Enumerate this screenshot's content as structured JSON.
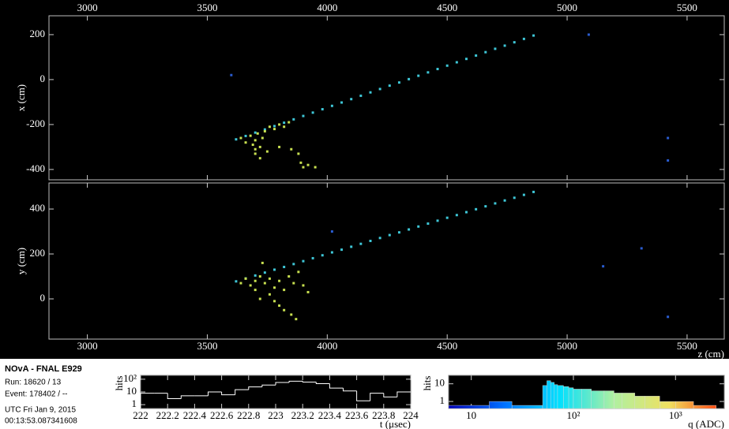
{
  "info": {
    "title": "NOvA - FNAL E929",
    "run": "Run:   18620 / 13",
    "event": "Event: 178402 / --",
    "date": "UTC Fri Jan 9, 2015",
    "time": "00:13:53.087341608"
  },
  "chart_data": [
    {
      "type": "scatter",
      "ylabel": "x (cm)",
      "xaxis": "top",
      "xlim": [
        2840,
        5655
      ],
      "ylim": [
        -446,
        284
      ],
      "xticks": [
        3000,
        3500,
        4000,
        4500,
        5000,
        5500
      ],
      "yticks": [
        -400,
        -200,
        0,
        200
      ],
      "series": [
        {
          "color": "#3ec6d6",
          "x": [
            3620,
            3660,
            3700,
            3740,
            3780,
            3820,
            3860,
            3900,
            3940,
            3980,
            4020,
            4060,
            4100,
            4140,
            4180,
            4220,
            4260,
            4300,
            4340,
            4380,
            4420,
            4460,
            4500,
            4540,
            4580,
            4620,
            4660,
            4700,
            4740,
            4780,
            4820,
            4860
          ],
          "values": [
            -266,
            -251,
            -236,
            -222,
            -207,
            -192,
            -177,
            -162,
            -147,
            -132,
            -117,
            -102,
            -87,
            -72,
            -57,
            -42,
            -27,
            -13,
            2,
            17,
            32,
            47,
            62,
            77,
            92,
            107,
            122,
            137,
            151,
            166,
            181,
            196
          ]
        },
        {
          "color": "#c8e050",
          "x": [
            3640,
            3660,
            3680,
            3690,
            3700,
            3710,
            3720,
            3730,
            3740,
            3760,
            3780,
            3800,
            3820,
            3840,
            3700,
            3750,
            3800,
            3850,
            3880,
            3890,
            3900,
            3920,
            3950,
            3700,
            3720
          ],
          "values": [
            -260,
            -280,
            -250,
            -290,
            -270,
            -240,
            -300,
            -260,
            -230,
            -210,
            -220,
            -200,
            -210,
            -190,
            -310,
            -320,
            -300,
            -310,
            -330,
            -370,
            -390,
            -380,
            -390,
            -330,
            -350
          ]
        },
        {
          "color": "#2a5cd0",
          "x": [
            3600,
            5090,
            5420,
            5420
          ],
          "values": [
            20,
            200,
            -260,
            -360
          ]
        }
      ]
    },
    {
      "type": "scatter",
      "ylabel": "y (cm)",
      "xlabel": "z (cm)",
      "xaxis": "bottom",
      "xlim": [
        2840,
        5655
      ],
      "ylim": [
        -179,
        516
      ],
      "xticks": [
        3000,
        3500,
        4000,
        4500,
        5000,
        5500
      ],
      "yticks": [
        0,
        200,
        400
      ],
      "series": [
        {
          "color": "#3ec6d6",
          "x": [
            3620,
            3660,
            3700,
            3740,
            3780,
            3820,
            3860,
            3900,
            3940,
            3980,
            4020,
            4060,
            4100,
            4140,
            4180,
            4220,
            4260,
            4300,
            4340,
            4380,
            4420,
            4460,
            4500,
            4540,
            4580,
            4620,
            4660,
            4700,
            4740,
            4780,
            4820,
            4860
          ],
          "values": [
            78,
            91,
            104,
            117,
            130,
            142,
            155,
            168,
            181,
            194,
            207,
            219,
            232,
            245,
            258,
            271,
            284,
            296,
            309,
            322,
            335,
            348,
            361,
            373,
            386,
            399,
            412,
            425,
            438,
            450,
            463,
            476
          ]
        },
        {
          "color": "#c8e050",
          "x": [
            3640,
            3660,
            3680,
            3700,
            3720,
            3730,
            3740,
            3760,
            3780,
            3800,
            3820,
            3840,
            3860,
            3880,
            3900,
            3920,
            3760,
            3780,
            3800,
            3820,
            3850,
            3870,
            3700,
            3720
          ],
          "values": [
            70,
            90,
            60,
            80,
            100,
            160,
            70,
            90,
            50,
            80,
            40,
            100,
            70,
            120,
            60,
            30,
            20,
            -10,
            -30,
            -50,
            -70,
            -90,
            40,
            0
          ]
        },
        {
          "color": "#2a5cd0",
          "x": [
            4020,
            5310,
            5150,
            5420
          ],
          "values": [
            300,
            225,
            145,
            -80
          ]
        }
      ]
    },
    {
      "type": "histogram",
      "style": "step",
      "color": "#ffffff",
      "ylabel": "hits",
      "xlabel": "t (μsec)",
      "ylog": true,
      "xlim": [
        222,
        224
      ],
      "ylim": [
        0.5,
        200
      ],
      "xticks": [
        222,
        222.2,
        222.4,
        222.6,
        222.8,
        223,
        223.2,
        223.4,
        223.6,
        223.8,
        224
      ],
      "yticks": [
        1,
        10,
        {
          "value": 100,
          "label": "10²"
        }
      ],
      "bins": [
        222,
        222.1,
        222.2,
        222.3,
        222.4,
        222.5,
        222.6,
        222.7,
        222.8,
        222.9,
        223,
        223.1,
        223.2,
        223.3,
        223.4,
        223.5,
        223.6,
        223.7,
        223.8,
        223.9,
        224
      ],
      "values": [
        8,
        8,
        3,
        5,
        5,
        10,
        6,
        15,
        25,
        35,
        55,
        70,
        60,
        45,
        20,
        12,
        2,
        8,
        4,
        10
      ]
    },
    {
      "type": "histogram",
      "style": "filled",
      "colormap": [
        "#0000b4",
        "#0070ff",
        "#00e0ff",
        "#b0f0a0",
        "#f0e060",
        "#ff3000"
      ],
      "ylabel": "hits",
      "xlabel": "q (ADC)",
      "xlog": true,
      "ylog": true,
      "xlim": [
        6,
        3000
      ],
      "ylim": [
        0.4,
        30
      ],
      "xticks": [
        10,
        {
          "value": 100,
          "label": "10²"
        },
        {
          "value": 1000,
          "label": "10³"
        }
      ],
      "yticks": [
        1,
        10
      ],
      "bins": [
        6,
        15,
        25,
        50,
        55,
        60,
        65,
        70,
        80,
        90,
        100,
        120,
        150,
        200,
        250,
        300,
        400,
        500,
        700,
        1000,
        1500,
        2500
      ],
      "values": [
        0.6,
        1,
        0.6,
        8,
        15,
        12,
        9,
        8,
        7,
        6,
        5,
        5,
        4,
        4,
        3,
        3,
        2,
        2,
        1,
        1,
        0.6
      ]
    }
  ]
}
